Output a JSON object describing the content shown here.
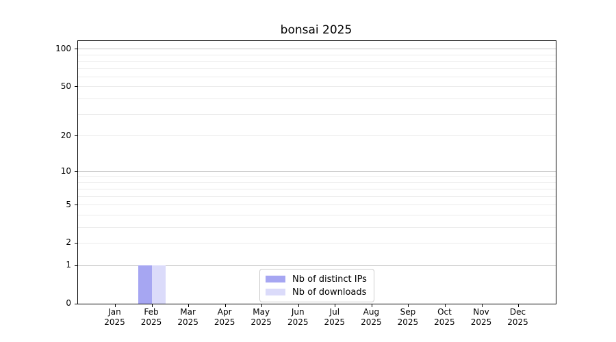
{
  "title": "bonsai 2025",
  "chart_data": {
    "type": "bar",
    "title": "bonsai 2025",
    "categories": [
      "Jan",
      "Feb",
      "Mar",
      "Apr",
      "May",
      "Jun",
      "Jul",
      "Aug",
      "Sep",
      "Oct",
      "Nov",
      "Dec"
    ],
    "year": "2025",
    "series": [
      {
        "name": "Nb of distinct IPs",
        "color": "#a6a6f2",
        "values": [
          0,
          1,
          0,
          0,
          0,
          0,
          0,
          0,
          0,
          0,
          0,
          0
        ]
      },
      {
        "name": "Nb of downloads",
        "color": "#dbdbfa",
        "values": [
          0,
          1,
          0,
          0,
          0,
          0,
          0,
          0,
          0,
          0,
          0,
          0
        ]
      }
    ],
    "xlabel": "",
    "ylabel": "",
    "y_scale": "log1p",
    "y_ticks": [
      0,
      1,
      2,
      5,
      10,
      20,
      50,
      100
    ],
    "ylim": [
      0,
      116
    ],
    "grid": {
      "on": true,
      "major_lines": [
        1,
        10,
        100
      ],
      "minor_lines": [
        2,
        3,
        4,
        5,
        6,
        7,
        8,
        9,
        20,
        30,
        40,
        50,
        60,
        70,
        80,
        90
      ],
      "major_color": "#c3c3c3",
      "minor_color": "#ebebeb"
    },
    "legend_position": "lower center",
    "axis_color": "#000000",
    "background_color": "#ffffff"
  }
}
